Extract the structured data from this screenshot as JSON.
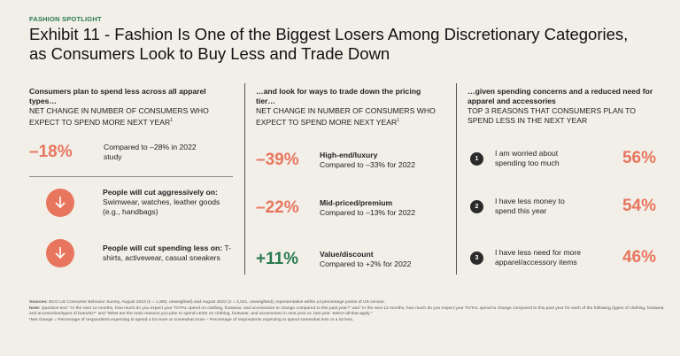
{
  "kicker": "FASHION SPOTLIGHT",
  "title_line1": "Exhibit 11 - Fashion Is One of the Biggest Losers Among Discretionary Categories,",
  "title_line2": "as Consumers Look to Buy Less and Trade Down",
  "colors": {
    "accent": "#e8765e",
    "green": "#2a7a4e",
    "bg": "#f2efe9",
    "dark": "#2b2b2b"
  },
  "chart_data": {
    "type": "table",
    "panels": [
      {
        "header": "Consumers plan to spend less across all apparel types…",
        "subheader": "NET CHANGE IN NUMBER OF CONSUMERS WHO EXPECT TO SPEND MORE NEXT YEAR",
        "footnote_mark": "1",
        "value": "–18%",
        "compare": "Compared to –28% in 2022 study",
        "items": [
          {
            "icon": "arrow-down-icon",
            "bold": "People will cut aggressively on:",
            "text": "Swimwear, watches, leather goods (e.g., handbags)"
          },
          {
            "icon": "arrow-down-icon",
            "bold": "People will cut spending less on:",
            "text": "T-shirts, activewear, casual sneakers"
          }
        ]
      },
      {
        "header": "…and look for ways to trade down the pricing tier…",
        "subheader": "NET CHANGE IN NUMBER OF CONSUMERS WHO EXPECT TO SPEND MORE NEXT YEAR",
        "footnote_mark": "1",
        "rows": [
          {
            "value": "–39%",
            "label": "High-end/luxury",
            "compare": "Compared to –33% for 2022"
          },
          {
            "value": "–22%",
            "label": "Mid-priced/premium",
            "compare": "Compared to –13% for 2022"
          },
          {
            "value": "+11%",
            "label": "Value/discount",
            "compare": "Compared to +2% for 2022"
          }
        ]
      },
      {
        "header": "…given spending concerns and a reduced need for apparel and accessories",
        "subheader": "TOP 3 REASONS THAT CONSUMERS PLAN TO SPEND LESS IN THE NEXT YEAR",
        "rows": [
          {
            "rank": "1",
            "text": "I am worried about spending too much",
            "value": "56%"
          },
          {
            "rank": "2",
            "text": "I have less money to spend this year",
            "value": "54%"
          },
          {
            "rank": "3",
            "text": "I have less need for more apparel/accessory items",
            "value": "46%"
          }
        ]
      }
    ]
  },
  "footer": {
    "sources_label": "Sources:",
    "sources": "BCG US Consumer Behavior Survey, August 2023 (n = 1,993, unweighted) and August 2022 (n = 2,041, unweighted), representative within ±3 percentage points of US census.",
    "note_label": "Note:",
    "note": "Question text: \"In the next 12 months, how much do you expect your TOTAL spend on clothing, footwear, and accessories to change compared to this past year?\" and \"In the next 12 months, how much do you expect your TOTAL spend to change compared to this past year for each of the following (types of clothing, footwear, and accessories/types of brands)?\" and \"What are the main reasons you plan to spend LESS on clothing, footwear, and accessories in next year vs. last year. Select all that apply.\"",
    "footnote": "¹Net change = Percentage of respondents expecting to spend a lot more or somewhat more – Percentage of respondents expecting to spend somewhat less or a lot less."
  }
}
